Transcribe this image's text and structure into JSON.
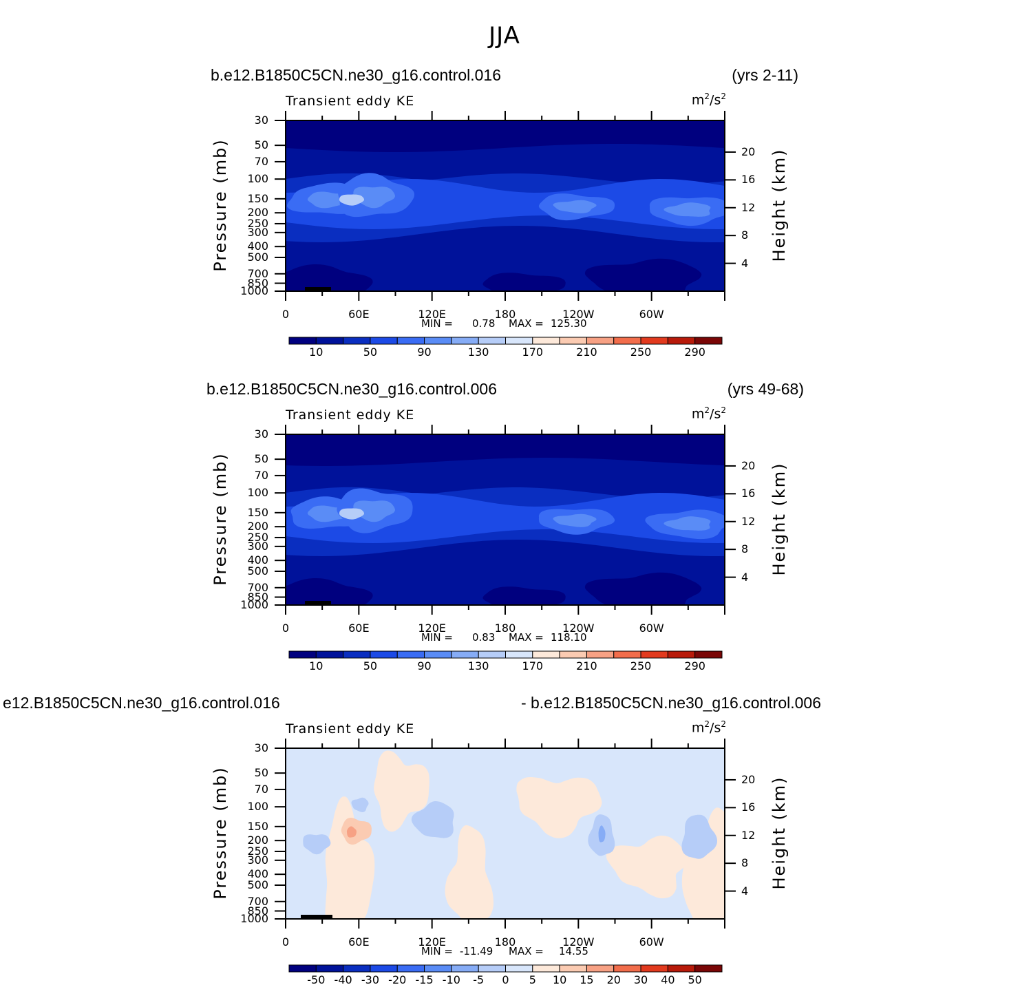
{
  "title": "JJA",
  "panels": [
    {
      "case_label": "b.e12.B1850C5CN.ne30_g16.control.016",
      "period_label": "(yrs 2-11)",
      "variable_label": "Transient eddy KE",
      "units_base": "m",
      "units_exp1": "2",
      "units_sep": "/s",
      "units_exp2": "2",
      "ylabel": "Pressure (mb)",
      "ylabel_right": "Height (km)",
      "min_label": "MIN =",
      "min_value": "0.78",
      "max_label": "MAX =",
      "max_value": "125.30",
      "colorbar_ticks": [
        "10",
        "50",
        "90",
        "130",
        "170",
        "210",
        "250",
        "290"
      ]
    },
    {
      "case_label": "b.e12.B1850C5CN.ne30_g16.control.006",
      "period_label": "(yrs 49-68)",
      "variable_label": "Transient eddy KE",
      "units_base": "m",
      "units_exp1": "2",
      "units_sep": "/s",
      "units_exp2": "2",
      "ylabel": "Pressure (mb)",
      "ylabel_right": "Height (km)",
      "min_label": "MIN =",
      "min_value": "0.83",
      "max_label": "MAX =",
      "max_value": "118.10",
      "colorbar_ticks": [
        "10",
        "50",
        "90",
        "130",
        "170",
        "210",
        "250",
        "290"
      ]
    },
    {
      "case_label": "e12.B1850C5CN.ne30_g16.control.016",
      "period_label": "- b.e12.B1850C5CN.ne30_g16.control.006",
      "variable_label": "Transient eddy KE",
      "units_base": "m",
      "units_exp1": "2",
      "units_sep": "/s",
      "units_exp2": "2",
      "ylabel": "Pressure (mb)",
      "ylabel_right": "Height (km)",
      "min_label": "MIN =",
      "min_value": "-11.49",
      "max_label": "MAX =",
      "max_value": "14.55",
      "colorbar_ticks": [
        "-50",
        "-40",
        "-30",
        "-20",
        "-15",
        "-10",
        "-5",
        "0",
        "5",
        "10",
        "15",
        "20",
        "30",
        "40",
        "50"
      ]
    }
  ],
  "chart_data": [
    {
      "type": "heatmap",
      "title": "Transient eddy KE",
      "subtitle": "b.e12.B1850C5CN.ne30_g16.control.016 (yrs 2-11)",
      "ylabel": "Pressure (mb)",
      "ylabel_right": "Height (km)",
      "x_ticks": [
        "0",
        "60E",
        "120E",
        "180",
        "120W",
        "60W"
      ],
      "y_ticks": [
        30,
        50,
        70,
        100,
        150,
        200,
        250,
        300,
        400,
        500,
        700,
        850,
        1000
      ],
      "y_ticks_right": [
        20,
        16,
        12,
        8,
        4
      ],
      "ylim": [
        1000,
        30
      ],
      "y_scale": "log",
      "min": 0.78,
      "max": 125.3,
      "contour_levels": [
        10,
        30,
        50,
        70,
        90,
        110,
        130,
        150,
        170,
        190,
        210,
        230,
        250,
        270,
        290
      ]
    },
    {
      "type": "heatmap",
      "title": "Transient eddy KE",
      "subtitle": "b.e12.B1850C5CN.ne30_g16.control.006 (yrs 49-68)",
      "ylabel": "Pressure (mb)",
      "ylabel_right": "Height (km)",
      "x_ticks": [
        "0",
        "60E",
        "120E",
        "180",
        "120W",
        "60W"
      ],
      "y_ticks": [
        30,
        50,
        70,
        100,
        150,
        200,
        250,
        300,
        400,
        500,
        700,
        850,
        1000
      ],
      "y_ticks_right": [
        20,
        16,
        12,
        8,
        4
      ],
      "ylim": [
        1000,
        30
      ],
      "y_scale": "log",
      "min": 0.83,
      "max": 118.1,
      "contour_levels": [
        10,
        30,
        50,
        70,
        90,
        110,
        130,
        150,
        170,
        190,
        210,
        230,
        250,
        270,
        290
      ]
    },
    {
      "type": "heatmap",
      "title": "Transient eddy KE",
      "subtitle": "e12.B1850C5CN.ne30_g16.control.016 - b.e12.B1850C5CN.ne30_g16.control.006",
      "ylabel": "Pressure (mb)",
      "ylabel_right": "Height (km)",
      "x_ticks": [
        "0",
        "60E",
        "120E",
        "180",
        "120W",
        "60W"
      ],
      "y_ticks": [
        30,
        50,
        70,
        100,
        150,
        200,
        250,
        300,
        400,
        500,
        700,
        850,
        1000
      ],
      "y_ticks_right": [
        20,
        16,
        12,
        8,
        4
      ],
      "ylim": [
        1000,
        30
      ],
      "y_scale": "log",
      "min": -11.49,
      "max": 14.55,
      "contour_levels": [
        -50,
        -40,
        -30,
        -20,
        -15,
        -10,
        -5,
        0,
        5,
        10,
        15,
        20,
        30,
        40,
        50
      ]
    }
  ],
  "colors": {
    "abs_scale": [
      "#00007f",
      "#00129a",
      "#0a2ec0",
      "#1c4ae6",
      "#3a6cf4",
      "#5a8cf6",
      "#86acf6",
      "#b6cdf8",
      "#d8e6fb",
      "#fde9da",
      "#fbcbb2",
      "#f7a184",
      "#f26d4b",
      "#e23a1e",
      "#b81a0a",
      "#7a0606"
    ],
    "diff_scale": [
      "#00007f",
      "#00129a",
      "#0a2ec0",
      "#1c4ae6",
      "#3a6cf4",
      "#5a8cf6",
      "#86acf6",
      "#b6cdf8",
      "#d8e6fb",
      "#fde9da",
      "#fbcbb2",
      "#f7a184",
      "#f26d4b",
      "#e23a1e",
      "#b81a0a",
      "#7a0606"
    ]
  }
}
